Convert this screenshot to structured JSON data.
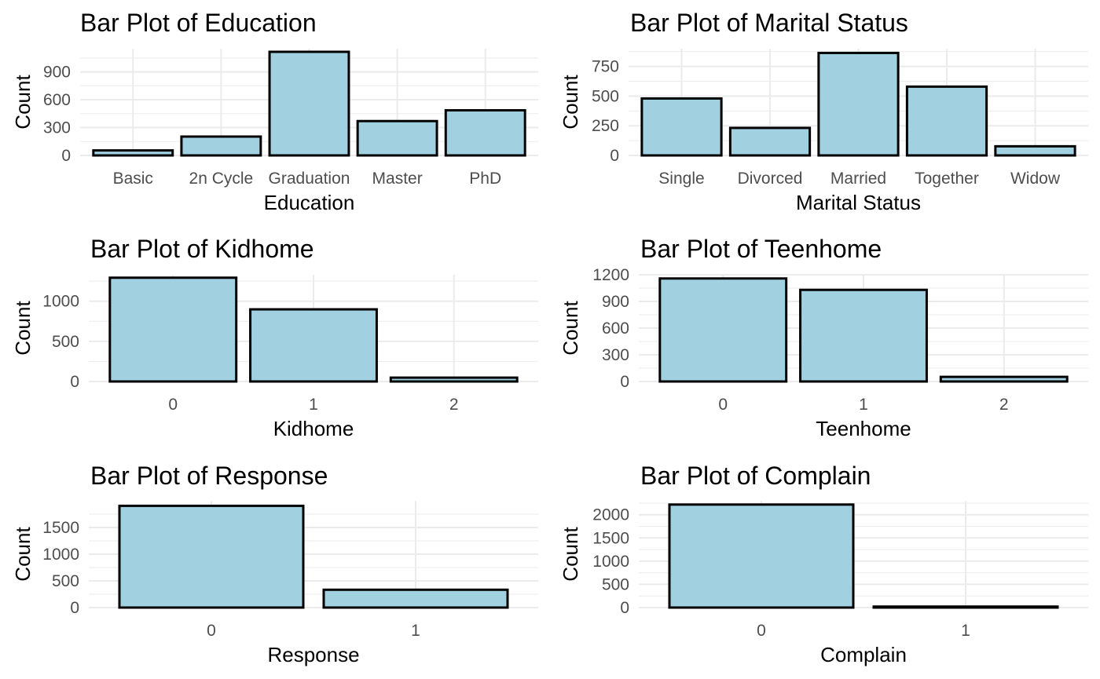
{
  "style": {
    "bar_fill": "#a1d0e1",
    "bar_outline": "#000000",
    "grid": "#ebebeb",
    "tick_text": "#4d4d4d"
  },
  "chart_data": [
    {
      "type": "bar",
      "title": "Bar Plot of Education",
      "xlabel": "Education",
      "ylabel": "Count",
      "categories": [
        "Basic",
        "2n Cycle",
        "Graduation",
        "Master",
        "PhD"
      ],
      "values": [
        54,
        203,
        1116,
        370,
        486
      ],
      "ylim": [
        0,
        1150
      ],
      "yticks": [
        0,
        300,
        600,
        900
      ],
      "grid": true
    },
    {
      "type": "bar",
      "title": "Bar Plot of Marital Status",
      "xlabel": "Marital Status",
      "ylabel": "Count",
      "categories": [
        "Single",
        "Divorced",
        "Married",
        "Together",
        "Widow"
      ],
      "values": [
        480,
        232,
        864,
        580,
        77
      ],
      "ylim": [
        0,
        900
      ],
      "yticks": [
        0,
        250,
        500,
        750
      ],
      "grid": true
    },
    {
      "type": "bar",
      "title": "Bar Plot of Kidhome",
      "xlabel": "Kidhome",
      "ylabel": "Count",
      "categories": [
        "0",
        "1",
        "2"
      ],
      "values": [
        1293,
        899,
        48
      ],
      "ylim": [
        0,
        1330
      ],
      "yticks": [
        0,
        500,
        1000
      ],
      "grid": true
    },
    {
      "type": "bar",
      "title": "Bar Plot of Teenhome",
      "xlabel": "Teenhome",
      "ylabel": "Count",
      "categories": [
        "0",
        "1",
        "2"
      ],
      "values": [
        1158,
        1030,
        52
      ],
      "ylim": [
        0,
        1200
      ],
      "yticks": [
        0,
        300,
        600,
        900,
        1200
      ],
      "grid": true
    },
    {
      "type": "bar",
      "title": "Bar Plot of Response",
      "xlabel": "Response",
      "ylabel": "Count",
      "categories": [
        "0",
        "1"
      ],
      "values": [
        1906,
        334
      ],
      "ylim": [
        0,
        2000
      ],
      "yticks": [
        0,
        500,
        1000,
        1500
      ],
      "grid": true
    },
    {
      "type": "bar",
      "title": "Bar Plot of Complain",
      "xlabel": "Complain",
      "ylabel": "Count",
      "categories": [
        "0",
        "1"
      ],
      "values": [
        2219,
        21
      ],
      "ylim": [
        0,
        2300
      ],
      "yticks": [
        0,
        500,
        1000,
        1500,
        2000
      ],
      "grid": true
    }
  ]
}
